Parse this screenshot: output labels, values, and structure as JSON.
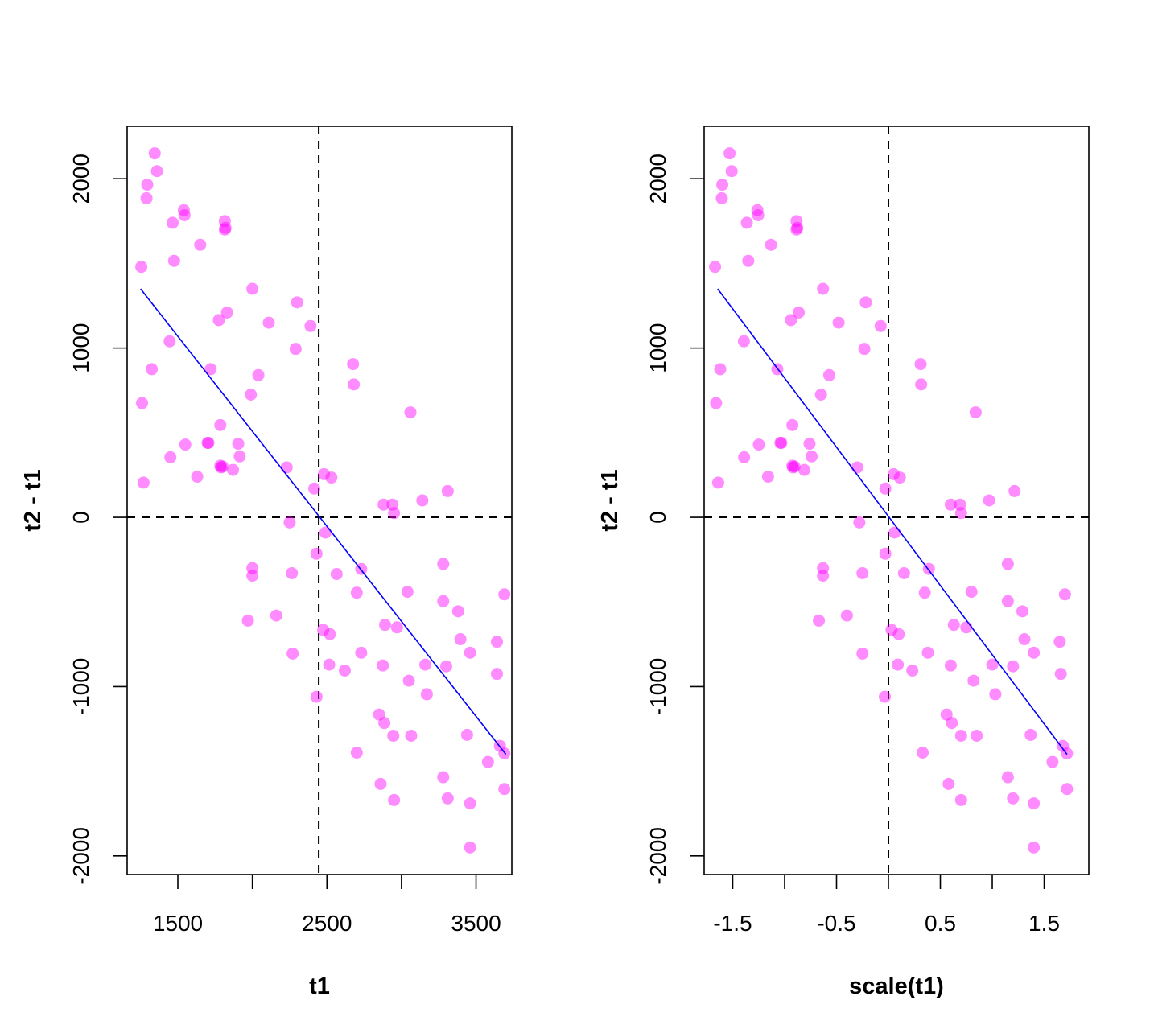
{
  "chart_data": [
    {
      "type": "scatter",
      "xlabel": "t1",
      "ylabel": "t2 - t1",
      "xlim": [
        1160,
        3740
      ],
      "ylim": [
        -2110,
        2310
      ],
      "xticks": [
        1500,
        2000,
        2500,
        3000,
        3500
      ],
      "xtick_labels": [
        "1500",
        "",
        "2500",
        "",
        "3500"
      ],
      "yticks": [
        -2000,
        -1000,
        0,
        1000,
        2000
      ],
      "ytick_labels": [
        "-2000",
        "-1000",
        "0",
        "1000",
        "2000"
      ],
      "vline": 2445,
      "hline": 0,
      "fit_line": {
        "x": [
          1250,
          3700
        ],
        "y": [
          1350,
          -1400
        ],
        "color": "#0000ff"
      },
      "point_color": "#ff00ff",
      "points": [
        [
          1345,
          2150
        ],
        [
          1360,
          2045
        ],
        [
          1295,
          1965
        ],
        [
          1290,
          1885
        ],
        [
          1540,
          1815
        ],
        [
          1545,
          1785
        ],
        [
          1465,
          1740
        ],
        [
          1815,
          1750
        ],
        [
          1820,
          1710
        ],
        [
          1815,
          1700
        ],
        [
          1650,
          1610
        ],
        [
          1255,
          1480
        ],
        [
          1475,
          1515
        ],
        [
          2000,
          1350
        ],
        [
          2300,
          1270
        ],
        [
          1830,
          1210
        ],
        [
          1775,
          1165
        ],
        [
          2110,
          1150
        ],
        [
          2390,
          1130
        ],
        [
          1445,
          1040
        ],
        [
          2290,
          995
        ],
        [
          1325,
          875
        ],
        [
          1720,
          875
        ],
        [
          2675,
          905
        ],
        [
          2040,
          840
        ],
        [
          2680,
          785
        ],
        [
          1990,
          725
        ],
        [
          1260,
          675
        ],
        [
          3060,
          620
        ],
        [
          1785,
          545
        ],
        [
          1550,
          430
        ],
        [
          1700,
          440
        ],
        [
          1705,
          440
        ],
        [
          1905,
          435
        ],
        [
          1450,
          355
        ],
        [
          1915,
          360
        ],
        [
          1790,
          295
        ],
        [
          1785,
          305
        ],
        [
          1800,
          300
        ],
        [
          1870,
          280
        ],
        [
          2230,
          295
        ],
        [
          2480,
          255
        ],
        [
          2530,
          235
        ],
        [
          1630,
          240
        ],
        [
          1270,
          205
        ],
        [
          2415,
          170
        ],
        [
          3310,
          155
        ],
        [
          3140,
          100
        ],
        [
          2880,
          75
        ],
        [
          2940,
          75
        ],
        [
          2950,
          25
        ],
        [
          2250,
          -30
        ],
        [
          2490,
          -90
        ],
        [
          2430,
          -215
        ],
        [
          2265,
          -330
        ],
        [
          2000,
          -300
        ],
        [
          2000,
          -345
        ],
        [
          2565,
          -335
        ],
        [
          2730,
          -305
        ],
        [
          3280,
          -275
        ],
        [
          2700,
          -445
        ],
        [
          3040,
          -440
        ],
        [
          3690,
          -455
        ],
        [
          3280,
          -495
        ],
        [
          3380,
          -555
        ],
        [
          1970,
          -610
        ],
        [
          2160,
          -580
        ],
        [
          2890,
          -635
        ],
        [
          2970,
          -650
        ],
        [
          2475,
          -665
        ],
        [
          2520,
          -690
        ],
        [
          3395,
          -720
        ],
        [
          3640,
          -735
        ],
        [
          2270,
          -805
        ],
        [
          2730,
          -800
        ],
        [
          3460,
          -800
        ],
        [
          2515,
          -870
        ],
        [
          2875,
          -875
        ],
        [
          3160,
          -870
        ],
        [
          3300,
          -880
        ],
        [
          2620,
          -905
        ],
        [
          3640,
          -925
        ],
        [
          3050,
          -965
        ],
        [
          3170,
          -1045
        ],
        [
          2430,
          -1060
        ],
        [
          2850,
          -1165
        ],
        [
          2885,
          -1215
        ],
        [
          2945,
          -1290
        ],
        [
          3065,
          -1290
        ],
        [
          3440,
          -1285
        ],
        [
          3660,
          -1350
        ],
        [
          3690,
          -1395
        ],
        [
          2700,
          -1390
        ],
        [
          3580,
          -1445
        ],
        [
          3280,
          -1535
        ],
        [
          2860,
          -1575
        ],
        [
          3690,
          -1605
        ],
        [
          3310,
          -1660
        ],
        [
          2950,
          -1670
        ],
        [
          3460,
          -1690
        ],
        [
          3460,
          -1950
        ]
      ]
    },
    {
      "type": "scatter",
      "xlabel": "scale(t1)",
      "ylabel": "t2 - t1",
      "xlim": [
        -1.775,
        1.93
      ],
      "ylim": [
        -2110,
        2310
      ],
      "xticks": [
        -1.5,
        -1,
        -0.5,
        0,
        0.5,
        1,
        1.5
      ],
      "xtick_labels": [
        "-1.5",
        "",
        "-0.5",
        "",
        "0.5",
        "",
        "1.5"
      ],
      "yticks": [
        -2000,
        -1000,
        0,
        1000,
        2000
      ],
      "ytick_labels": [
        "-2000",
        "-1000",
        "0",
        "1000",
        "2000"
      ],
      "vline": 0,
      "hline": 0,
      "fit_line": {
        "x": [
          -1.645,
          1.72
        ],
        "y": [
          1350,
          -1400
        ],
        "color": "#0000ff"
      },
      "point_color": "#ff00ff",
      "points": [
        [
          -1.53,
          2150
        ],
        [
          -1.51,
          2045
        ],
        [
          -1.6,
          1965
        ],
        [
          -1.605,
          1885
        ],
        [
          -1.262,
          1815
        ],
        [
          -1.255,
          1785
        ],
        [
          -1.364,
          1740
        ],
        [
          -0.885,
          1750
        ],
        [
          -0.878,
          1710
        ],
        [
          -0.885,
          1700
        ],
        [
          -1.131,
          1610
        ],
        [
          -1.67,
          1480
        ],
        [
          -1.35,
          1515
        ],
        [
          -0.63,
          1350
        ],
        [
          -0.218,
          1270
        ],
        [
          -0.864,
          1210
        ],
        [
          -0.939,
          1165
        ],
        [
          -0.48,
          1150
        ],
        [
          -0.075,
          1130
        ],
        [
          -1.392,
          1040
        ],
        [
          -0.232,
          995
        ],
        [
          -1.62,
          875
        ],
        [
          -1.07,
          875
        ],
        [
          0.31,
          905
        ],
        [
          -0.57,
          840
        ],
        [
          0.315,
          785
        ],
        [
          -0.65,
          725
        ],
        [
          -1.66,
          675
        ],
        [
          0.84,
          620
        ],
        [
          -0.925,
          545
        ],
        [
          -1.248,
          430
        ],
        [
          -1.04,
          440
        ],
        [
          -1.032,
          440
        ],
        [
          -0.76,
          435
        ],
        [
          -1.39,
          355
        ],
        [
          -0.74,
          360
        ],
        [
          -0.918,
          295
        ],
        [
          -0.925,
          305
        ],
        [
          -0.905,
          300
        ],
        [
          -0.81,
          280
        ],
        [
          -0.3,
          295
        ],
        [
          0.05,
          255
        ],
        [
          0.11,
          235
        ],
        [
          -1.16,
          240
        ],
        [
          -1.64,
          205
        ],
        [
          -0.03,
          170
        ],
        [
          1.215,
          155
        ],
        [
          0.97,
          100
        ],
        [
          0.6,
          75
        ],
        [
          0.69,
          75
        ],
        [
          0.7,
          25
        ],
        [
          -0.28,
          -30
        ],
        [
          0.06,
          -90
        ],
        [
          -0.03,
          -215
        ],
        [
          0.15,
          -330
        ],
        [
          -0.63,
          -300
        ],
        [
          -0.63,
          -345
        ],
        [
          0.39,
          -305
        ],
        [
          -0.25,
          -330
        ],
        [
          1.15,
          -275
        ],
        [
          0.35,
          -445
        ],
        [
          0.8,
          -440
        ],
        [
          1.7,
          -455
        ],
        [
          1.15,
          -495
        ],
        [
          1.29,
          -555
        ],
        [
          -0.67,
          -610
        ],
        [
          -0.4,
          -580
        ],
        [
          0.63,
          -635
        ],
        [
          0.75,
          -650
        ],
        [
          0.03,
          -665
        ],
        [
          0.1,
          -690
        ],
        [
          1.31,
          -720
        ],
        [
          1.65,
          -735
        ],
        [
          -0.25,
          -805
        ],
        [
          0.38,
          -800
        ],
        [
          1.4,
          -800
        ],
        [
          0.09,
          -870
        ],
        [
          0.6,
          -875
        ],
        [
          1.0,
          -870
        ],
        [
          1.2,
          -880
        ],
        [
          0.23,
          -905
        ],
        [
          1.66,
          -925
        ],
        [
          0.82,
          -965
        ],
        [
          1.03,
          -1045
        ],
        [
          -0.035,
          -1060
        ],
        [
          0.56,
          -1165
        ],
        [
          0.61,
          -1215
        ],
        [
          0.7,
          -1290
        ],
        [
          0.85,
          -1290
        ],
        [
          1.37,
          -1285
        ],
        [
          1.68,
          -1350
        ],
        [
          1.72,
          -1395
        ],
        [
          0.33,
          -1390
        ],
        [
          1.58,
          -1445
        ],
        [
          1.15,
          -1535
        ],
        [
          0.58,
          -1575
        ],
        [
          1.72,
          -1605
        ],
        [
          1.2,
          -1660
        ],
        [
          0.7,
          -1670
        ],
        [
          1.4,
          -1690
        ],
        [
          1.4,
          -1950
        ]
      ]
    }
  ]
}
